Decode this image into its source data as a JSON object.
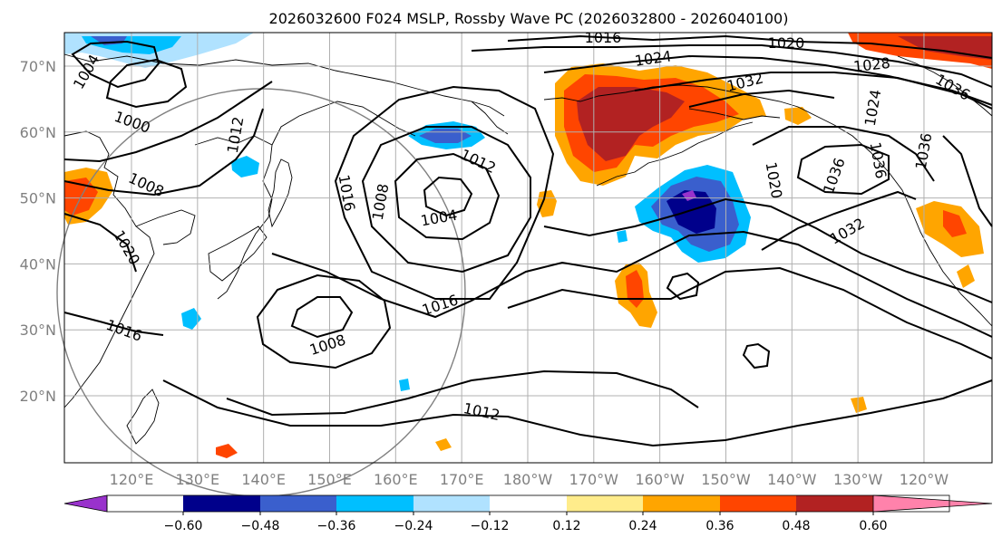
{
  "title": "2026032600 F024 MSLP, Rossby Wave PC (2026032800 - 2026040100)",
  "map": {
    "lat_labels": [
      {
        "text": "70°N",
        "lat": 70
      },
      {
        "text": "60°N",
        "lat": 60
      },
      {
        "text": "50°N",
        "lat": 50
      },
      {
        "text": "40°N",
        "lat": 40
      },
      {
        "text": "30°N",
        "lat": 30
      },
      {
        "text": "20°N",
        "lat": 20
      }
    ],
    "lon_labels": [
      "120°E",
      "130°E",
      "140°E",
      "150°E",
      "160°E",
      "170°E",
      "180°W",
      "170°W",
      "160°W",
      "150°W",
      "140°W",
      "130°W",
      "120°W"
    ],
    "isobar_labels": [
      "1016",
      "1020",
      "1024",
      "1028",
      "1032",
      "1036",
      "1004",
      "1000",
      "1012",
      "1008",
      "1016",
      "1008",
      "1004",
      "1012",
      "1020",
      "1016",
      "1016",
      "1008",
      "1012",
      "1020",
      "1032",
      "1036",
      "1036",
      "1036",
      "1024"
    ],
    "colors": {
      "gridline": "#b0b0b0",
      "contour": "#000000",
      "range_ring": "#808080"
    }
  },
  "colorbar": {
    "tick_labels": [
      "−0.60",
      "−0.48",
      "−0.36",
      "−0.24",
      "−0.12",
      "0.12",
      "0.24",
      "0.36",
      "0.48",
      "0.60"
    ],
    "colors": [
      "#9932cc",
      "#00008b",
      "#3a5fcd",
      "#00bfff",
      "#b0e2ff",
      "#ffffff",
      "#ffec8b",
      "#ffa500",
      "#ff4500",
      "#b22222",
      "#ff82ab"
    ]
  }
}
